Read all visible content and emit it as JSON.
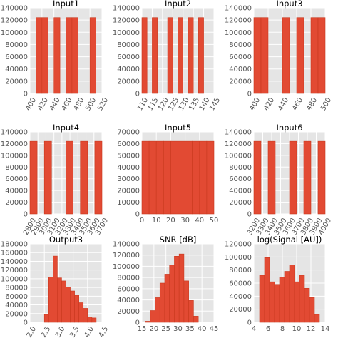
{
  "figure": {
    "background": "#ffffff",
    "axes_background": "#e5e5e5",
    "grid_color": "#ffffff",
    "bar_color": "#e24a33",
    "bar_edge": "#c9391f",
    "grid": true
  },
  "chart_data": [
    {
      "type": "bar",
      "title": "Input1",
      "xlim": [
        400,
        520
      ],
      "ylim": [
        0,
        140000
      ],
      "xticks": [
        400,
        420,
        440,
        460,
        480,
        500,
        520
      ],
      "yticks": [
        0,
        20000,
        40000,
        60000,
        80000,
        100000,
        120000,
        140000
      ],
      "xtick_rotation": 60,
      "bins": [
        [
          410,
          420
        ],
        [
          420,
          430
        ],
        [
          440,
          450
        ],
        [
          460,
          470
        ],
        [
          470,
          480
        ],
        [
          500,
          510
        ]
      ],
      "values": [
        124000,
        124000,
        124000,
        124000,
        124000,
        124000
      ]
    },
    {
      "type": "bar",
      "title": "Input2",
      "xlim": [
        110,
        145
      ],
      "ylim": [
        0,
        140000
      ],
      "xticks": [
        110,
        115,
        120,
        125,
        130,
        135,
        140,
        145
      ],
      "yticks": [
        0,
        20000,
        40000,
        60000,
        80000,
        100000,
        120000,
        140000
      ],
      "xtick_rotation": 60,
      "bins": [
        [
          110,
          112.5
        ],
        [
          115,
          117.5
        ],
        [
          122.5,
          125
        ],
        [
          127.5,
          130
        ],
        [
          132.5,
          135
        ],
        [
          137.5,
          140
        ]
      ],
      "values": [
        124000,
        124000,
        124000,
        124000,
        124000,
        124000
      ]
    },
    {
      "type": "bar",
      "title": "Input3",
      "xlim": [
        400,
        500
      ],
      "ylim": [
        0,
        140000
      ],
      "xticks": [
        400,
        420,
        440,
        460,
        480,
        500
      ],
      "yticks": [
        0,
        20000,
        40000,
        60000,
        80000,
        100000,
        120000,
        140000
      ],
      "xtick_rotation": 60,
      "bins": [
        [
          400,
          410
        ],
        [
          410,
          420
        ],
        [
          440,
          450
        ],
        [
          460,
          470
        ],
        [
          480,
          490
        ],
        [
          490,
          500
        ]
      ],
      "values": [
        124000,
        124000,
        124000,
        124000,
        124000,
        124000
      ]
    },
    {
      "type": "bar",
      "title": "Input4",
      "xlim": [
        2800,
        3700
      ],
      "ylim": [
        0,
        140000
      ],
      "xticks": [
        2800,
        2900,
        3000,
        3100,
        3200,
        3300,
        3400,
        3500,
        3600,
        3700
      ],
      "yticks": [
        0,
        20000,
        40000,
        60000,
        80000,
        100000,
        120000,
        140000
      ],
      "xtick_rotation": 60,
      "bins": [
        [
          2800,
          2890
        ],
        [
          2980,
          3070
        ],
        [
          3250,
          3340
        ],
        [
          3430,
          3520
        ],
        [
          3610,
          3700
        ]
      ],
      "values": [
        124000,
        124000,
        124000,
        124000,
        124000
      ]
    },
    {
      "type": "bar",
      "title": "Input5",
      "xlim": [
        0,
        50
      ],
      "ylim": [
        0,
        70000
      ],
      "xticks": [
        0,
        10,
        20,
        30,
        40,
        50
      ],
      "yticks": [
        0,
        10000,
        20000,
        30000,
        40000,
        50000,
        60000,
        70000
      ],
      "xtick_rotation": 0,
      "bins": [
        [
          0,
          5
        ],
        [
          5,
          10
        ],
        [
          10,
          15
        ],
        [
          15,
          20
        ],
        [
          20,
          25
        ],
        [
          25,
          30
        ],
        [
          30,
          35
        ],
        [
          35,
          40
        ],
        [
          40,
          45
        ],
        [
          45,
          50
        ]
      ],
      "values": [
        62000,
        62000,
        62000,
        62000,
        62000,
        62000,
        62000,
        62000,
        62000,
        62000
      ]
    },
    {
      "type": "bar",
      "title": "Input6",
      "xlim": [
        3200,
        4000
      ],
      "ylim": [
        0,
        140000
      ],
      "xticks": [
        3200,
        3300,
        3400,
        3500,
        3600,
        3700,
        3800,
        3900,
        4000
      ],
      "yticks": [
        0,
        20000,
        40000,
        60000,
        80000,
        100000,
        120000,
        140000
      ],
      "xtick_rotation": 60,
      "bins": [
        [
          3200,
          3280
        ],
        [
          3360,
          3440
        ],
        [
          3600,
          3680
        ],
        [
          3760,
          3840
        ],
        [
          3920,
          4000
        ]
      ],
      "values": [
        124000,
        124000,
        124000,
        124000,
        124000
      ]
    },
    {
      "type": "bar",
      "title": "Output3",
      "xlim": [
        2.0,
        4.5
      ],
      "ylim": [
        0,
        180000
      ],
      "xticks": [
        "2.0",
        "2.5",
        "3.0",
        "3.5",
        "4.0",
        "4.5"
      ],
      "yticks": [
        0,
        20000,
        40000,
        60000,
        80000,
        100000,
        120000,
        140000,
        160000,
        180000
      ],
      "xtick_rotation": 60,
      "bins": [
        [
          2.5,
          2.65
        ],
        [
          2.65,
          2.8
        ],
        [
          2.8,
          2.95
        ],
        [
          2.95,
          3.1
        ],
        [
          3.1,
          3.25
        ],
        [
          3.25,
          3.4
        ],
        [
          3.4,
          3.55
        ],
        [
          3.55,
          3.7
        ],
        [
          3.7,
          3.85
        ],
        [
          3.85,
          4.0
        ],
        [
          4.0,
          4.15
        ],
        [
          4.15,
          4.3
        ]
      ],
      "values": [
        18000,
        104000,
        152000,
        102000,
        95000,
        81000,
        72000,
        62000,
        45000,
        32000,
        12000,
        10000
      ]
    },
    {
      "type": "bar",
      "title": "SNR [dB]",
      "xlim": [
        15,
        45
      ],
      "ylim": [
        0,
        140000
      ],
      "xticks": [
        15,
        20,
        25,
        30,
        35,
        40,
        45
      ],
      "yticks": [
        0,
        20000,
        40000,
        60000,
        80000,
        100000,
        120000,
        140000
      ],
      "xtick_rotation": 0,
      "bins": [
        [
          16.5,
          18.5
        ],
        [
          18.5,
          20.5
        ],
        [
          20.5,
          22.5
        ],
        [
          22.5,
          24.5
        ],
        [
          24.5,
          26.5
        ],
        [
          26.5,
          28.5
        ],
        [
          28.5,
          30.5
        ],
        [
          30.5,
          32.5
        ],
        [
          32.5,
          34.5
        ],
        [
          34.5,
          36.5
        ],
        [
          36.5,
          38.5
        ]
      ],
      "values": [
        2000,
        21000,
        44000,
        70000,
        86000,
        102000,
        118000,
        122000,
        74000,
        39000,
        11000
      ]
    },
    {
      "type": "bar",
      "title": "log(Signal [AU])",
      "xlim": [
        4,
        14
      ],
      "ylim": [
        0,
        120000
      ],
      "xticks": [
        4,
        6,
        8,
        10,
        12,
        14
      ],
      "yticks": [
        0,
        20000,
        40000,
        60000,
        80000,
        100000,
        120000
      ],
      "xtick_rotation": 0,
      "bins": [
        [
          4.8,
          5.5
        ],
        [
          5.5,
          6.2
        ],
        [
          6.2,
          6.9
        ],
        [
          6.9,
          7.6
        ],
        [
          7.6,
          8.3
        ],
        [
          8.3,
          9.0
        ],
        [
          9.0,
          9.7
        ],
        [
          9.7,
          10.4
        ],
        [
          10.4,
          11.1
        ],
        [
          11.1,
          11.8
        ],
        [
          11.8,
          12.5
        ],
        [
          12.5,
          13.2
        ]
      ],
      "values": [
        72000,
        99000,
        62000,
        58000,
        69000,
        78000,
        88000,
        62000,
        72000,
        52000,
        38000,
        12000
      ]
    }
  ]
}
